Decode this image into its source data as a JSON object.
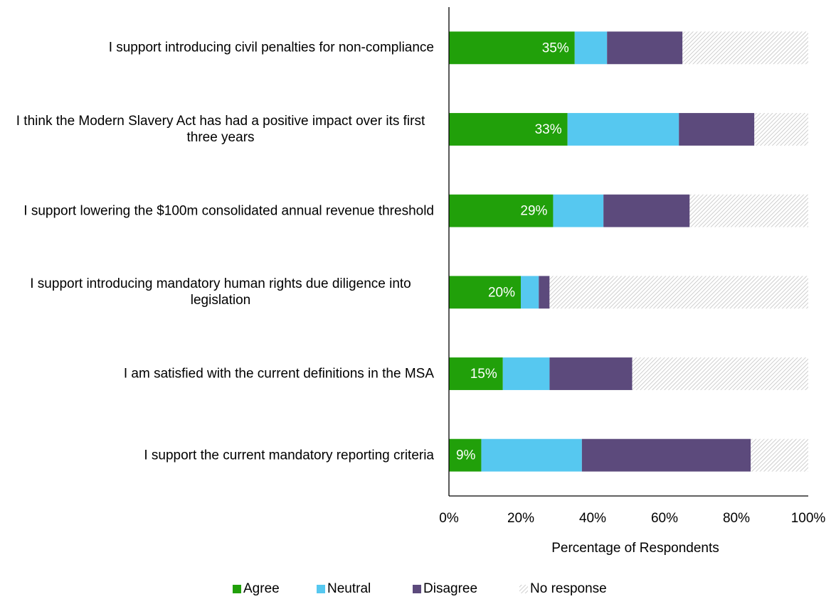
{
  "chart_data": {
    "type": "stacked-barh",
    "categories": [
      "I support introducing civil penalties for non-compliance",
      "I think the Modern Slavery Act has had a positive impact over its first three years",
      "I support lowering the $100m consolidated annual revenue threshold",
      "I support introducing mandatory human rights due diligence into legislation",
      "I am satisfied with the current definitions in the MSA",
      "I support the current mandatory reporting criteria"
    ],
    "series": [
      {
        "name": "Agree",
        "color": "#21a00a",
        "values": [
          35,
          33,
          29,
          20,
          15,
          9
        ],
        "value_labels": [
          "35%",
          "33%",
          "29%",
          "20%",
          "15%",
          "9%"
        ]
      },
      {
        "name": "Neutral",
        "color": "#56c8f0",
        "values": [
          9,
          31,
          14,
          5,
          13,
          28
        ]
      },
      {
        "name": "Disagree",
        "color": "#5c4a7c",
        "values": [
          21,
          21,
          24,
          3,
          23,
          47
        ]
      },
      {
        "name": "No response",
        "color": "#bfbfbf",
        "pattern": "hatch",
        "values": [
          35,
          15,
          33,
          72,
          49,
          16
        ]
      }
    ],
    "xlabel": "Percentage of Respondents",
    "xlim": [
      0,
      100
    ],
    "xticks": [
      {
        "value": 0,
        "label": "0%"
      },
      {
        "value": 20,
        "label": "20%"
      },
      {
        "value": 40,
        "label": "40%"
      },
      {
        "value": 60,
        "label": "60%"
      },
      {
        "value": 80,
        "label": "80%"
      },
      {
        "value": 100,
        "label": "100%"
      }
    ],
    "legend": "bottom"
  }
}
